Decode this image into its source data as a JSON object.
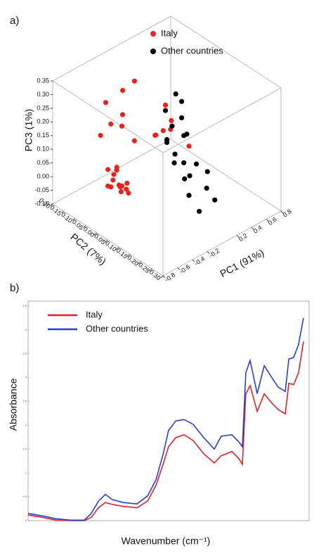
{
  "chart_data": [
    {
      "type": "scatter3d",
      "panel": "a)",
      "xlabel": "PC1 (91%)",
      "ylabel": "PC2 (7%)",
      "zlabel": "PC3 (1%)",
      "xlim": [
        -0.8,
        0.8
      ],
      "ylim": [
        -0.3,
        0.2
      ],
      "zlim": [
        -0.1,
        0.35
      ],
      "xticks": [
        -0.8,
        -0.6,
        -0.4,
        -0.2,
        0.2,
        0.4,
        0.6,
        0.8
      ],
      "yticks": [
        {
          "value": 0.2,
          "label": "0.20"
        },
        0.15,
        {
          "value": 0.1,
          "label": "0.10"
        },
        0.05,
        {
          "value": 0,
          "label": "0.00"
        },
        -0.05,
        {
          "value": -0.1,
          "label": "-0.10"
        },
        -0.15,
        {
          "value": -0.2,
          "label": "-0.20"
        },
        -0.25,
        {
          "value": -0.3,
          "label": "-0.30"
        }
      ],
      "zticks": [
        {
          "value": -0.1,
          "label": "-0.10"
        },
        -0.05,
        {
          "value": 0,
          "label": "0.00"
        },
        0.05,
        {
          "value": 0.1,
          "label": "0.10"
        },
        0.15,
        {
          "value": 0.2,
          "label": "0.20"
        },
        0.25,
        {
          "value": 0.3,
          "label": "0.30"
        },
        0.35
      ],
      "series": [
        {
          "name": "Italy",
          "color": "#e52420",
          "x": [
            -0.55,
            -0.5,
            -0.48,
            -0.52,
            -0.45,
            -0.58,
            -0.5,
            -0.42,
            -0.47,
            -0.53,
            -0.4,
            -0.56,
            -0.44,
            -0.49,
            -0.6,
            -0.55,
            -0.45,
            -0.4,
            -0.3,
            -0.2,
            -0.35,
            -0.5,
            0.05,
            0.1,
            0.12,
            0.2,
            0.15,
            0.22,
            0.3
          ],
          "y": [
            0.02,
            0,
            0.03,
            -0.02,
            0.01,
            0,
            0.05,
            -0.01,
            0.02,
            0.04,
            0,
            -0.03,
            0.03,
            -0.04,
            0.05,
            0.02,
            0,
            0.02,
            0.05,
            0.03,
            -0.02,
            0.06,
            0.02,
            0,
            0.04,
            0,
            -0.02,
            0.03,
            -0.05
          ],
          "z": [
            0.02,
            0.03,
            0.05,
            0.04,
            0.01,
            0.06,
            0,
            0.03,
            0.08,
            0.07,
            0,
            0.03,
            0.06,
            0.02,
            0.2,
            0.25,
            0.28,
            0.22,
            0.32,
            0.35,
            0.18,
            0.3,
            0.12,
            0.14,
            0.1,
            0.13,
            0.18,
            0.2,
            0.08
          ]
        },
        {
          "name": "Other countries",
          "color": "#000000",
          "x": [
            0.15,
            0.2,
            0.25,
            0.3,
            0.28,
            0.35,
            0.22,
            0.3,
            0.4,
            0.45,
            0.5,
            0.35,
            0.38,
            0.42,
            0.18,
            0.26,
            0.32,
            0.28,
            0.55,
            0.36
          ],
          "y": [
            0,
            -0.02,
            0,
            -0.03,
            0.02,
            0,
            0.03,
            -0.05,
            -0.05,
            -0.08,
            -0.1,
            -0.08,
            0.01,
            0,
            0.01,
            -0.04,
            -0.02,
            -0.06,
            -0.05,
            0.03
          ],
          "z": [
            0.1,
            0.05,
            0,
            -0.05,
            0.12,
            0.15,
            0.18,
            -0.1,
            0,
            -0.08,
            -0.12,
            -0.15,
            0.2,
            0.08,
            0.08,
            0.02,
            0.1,
            -0.02,
            -0.05,
            0.22
          ]
        }
      ]
    },
    {
      "type": "line",
      "panel": "b)",
      "xlabel": "Wavenumber (cm⁻¹)",
      "ylabel": "Absorbance",
      "xlim": [
        1000,
        2500
      ],
      "ylim": [
        0,
        4.5
      ],
      "yticks": [
        0,
        0.5,
        1,
        1.5,
        2,
        2.5,
        3,
        3.5,
        4,
        4.5
      ],
      "x": [
        1000,
        1077,
        1153,
        1230,
        1306,
        1344,
        1383,
        1421,
        1459,
        1517,
        1593,
        1651,
        1697,
        1735,
        1765,
        1804,
        1850,
        1899,
        1957,
        2014,
        2052,
        2110,
        2148,
        2167,
        2186,
        2209,
        2248,
        2286,
        2324,
        2362,
        2401,
        2420,
        2446,
        2473,
        2500
      ],
      "series": [
        {
          "name": "Italy",
          "color": "#e0202a",
          "values": [
            0.12,
            0.07,
            0.01,
            0,
            0,
            0.07,
            0.27,
            0.38,
            0.34,
            0.3,
            0.27,
            0.41,
            0.74,
            1.18,
            1.55,
            1.74,
            1.8,
            1.68,
            1.4,
            1.21,
            1.36,
            1.45,
            1.3,
            1.18,
            2.66,
            2.83,
            2.29,
            2.66,
            2.48,
            2.33,
            2.24,
            2.88,
            2.85,
            3.1,
            3.76
          ]
        },
        {
          "name": "Other countries",
          "color": "#2a3fd0",
          "values": [
            0.15,
            0.1,
            0.04,
            0.01,
            0.01,
            0.15,
            0.41,
            0.55,
            0.44,
            0.38,
            0.35,
            0.52,
            0.86,
            1.39,
            1.89,
            2.09,
            2.12,
            2.02,
            1.74,
            1.5,
            1.77,
            1.8,
            1.65,
            1.55,
            3.1,
            3.36,
            2.66,
            3.25,
            3.02,
            2.8,
            2.71,
            3.39,
            3.42,
            3.69,
            4.25
          ]
        }
      ]
    }
  ]
}
